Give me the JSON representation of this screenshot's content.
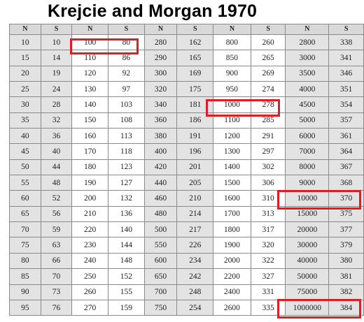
{
  "title": "Krejcie and Morgan 1970",
  "headers": [
    "N",
    "S",
    "N",
    "S",
    "N",
    "S",
    "N",
    "S",
    "N",
    "S"
  ],
  "rows": [
    [
      "10",
      "10",
      "100",
      "80",
      "280",
      "162",
      "800",
      "260",
      "2800",
      "338"
    ],
    [
      "15",
      "14",
      "110",
      "86",
      "290",
      "165",
      "850",
      "265",
      "3000",
      "341"
    ],
    [
      "20",
      "19",
      "120",
      "92",
      "300",
      "169",
      "900",
      "269",
      "3500",
      "346"
    ],
    [
      "25",
      "24",
      "130",
      "97",
      "320",
      "175",
      "950",
      "274",
      "4000",
      "351"
    ],
    [
      "30",
      "28",
      "140",
      "103",
      "340",
      "181",
      "1000",
      "278",
      "4500",
      "354"
    ],
    [
      "35",
      "32",
      "150",
      "108",
      "360",
      "186",
      "1100",
      "285",
      "5000",
      "357"
    ],
    [
      "40",
      "36",
      "160",
      "113",
      "380",
      "191",
      "1200",
      "291",
      "6000",
      "361"
    ],
    [
      "45",
      "40",
      "170",
      "118",
      "400",
      "196",
      "1300",
      "297",
      "7000",
      "364"
    ],
    [
      "50",
      "44",
      "180",
      "123",
      "420",
      "201",
      "1400",
      "302",
      "8000",
      "367"
    ],
    [
      "55",
      "48",
      "190",
      "127",
      "440",
      "205",
      "1500",
      "306",
      "9000",
      "368"
    ],
    [
      "60",
      "52",
      "200",
      "132",
      "460",
      "210",
      "1600",
      "310",
      "10000",
      "370"
    ],
    [
      "65",
      "56",
      "210",
      "136",
      "480",
      "214",
      "1700",
      "313",
      "15000",
      "375"
    ],
    [
      "70",
      "59",
      "220",
      "140",
      "500",
      "217",
      "1800",
      "317",
      "20000",
      "377"
    ],
    [
      "75",
      "63",
      "230",
      "144",
      "550",
      "226",
      "1900",
      "320",
      "30000",
      "379"
    ],
    [
      "80",
      "66",
      "240",
      "148",
      "600",
      "234",
      "2000",
      "322",
      "40000",
      "380"
    ],
    [
      "85",
      "70",
      "250",
      "152",
      "650",
      "242",
      "2200",
      "327",
      "50000",
      "381"
    ],
    [
      "90",
      "73",
      "260",
      "155",
      "700",
      "248",
      "2400",
      "331",
      "75000",
      "382"
    ],
    [
      "95",
      "76",
      "270",
      "159",
      "750",
      "254",
      "2600",
      "335",
      "1000000",
      "384"
    ]
  ],
  "highlight_color": "#e31b23"
}
